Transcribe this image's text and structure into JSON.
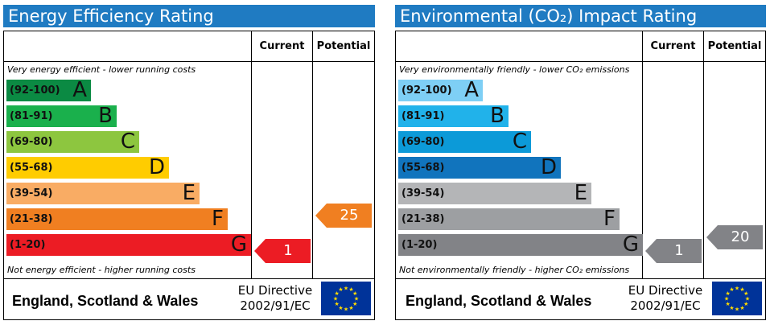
{
  "colors": {
    "title_bar": "#1f7bc2",
    "energy_bands": [
      "#0b8a43",
      "#1ab04c",
      "#8dc63f",
      "#ffcc00",
      "#f9ac64",
      "#f07f21",
      "#ec1c24"
    ],
    "environment_bands": [
      "#7ecff5",
      "#21b2ea",
      "#0c9ad8",
      "#1174bd",
      "#b4b5b7",
      "#9d9fa2",
      "#828387"
    ],
    "eu_flag_blue": "#003399",
    "eu_flag_stars": "#ffdd00"
  },
  "chart_data": [
    {
      "type": "table",
      "title": "Energy Efficiency Rating",
      "columns": [
        "Current",
        "Potential"
      ],
      "top_caption": "Very energy efficient - lower running costs",
      "bottom_caption": "Not energy efficient - higher running costs",
      "bands": [
        {
          "range": "(92-100)",
          "letter": "A"
        },
        {
          "range": "(81-91)",
          "letter": "B"
        },
        {
          "range": "(69-80)",
          "letter": "C"
        },
        {
          "range": "(55-68)",
          "letter": "D"
        },
        {
          "range": "(39-54)",
          "letter": "E"
        },
        {
          "range": "(21-38)",
          "letter": "F"
        },
        {
          "range": "(1-20)",
          "letter": "G"
        }
      ],
      "current": {
        "value": "1",
        "band": "G"
      },
      "potential": {
        "value": "25",
        "band": "F"
      },
      "footer": {
        "region": "England, Scotland & Wales",
        "directive_line1": "EU Directive",
        "directive_line2": "2002/91/EC"
      }
    },
    {
      "type": "table",
      "title": "Environmental (CO₂) Impact Rating",
      "columns": [
        "Current",
        "Potential"
      ],
      "top_caption": "Very environmentally friendly - lower CO₂ emissions",
      "bottom_caption": "Not environmentally friendly - higher CO₂ emissions",
      "bands": [
        {
          "range": "(92-100)",
          "letter": "A"
        },
        {
          "range": "(81-91)",
          "letter": "B"
        },
        {
          "range": "(69-80)",
          "letter": "C"
        },
        {
          "range": "(55-68)",
          "letter": "D"
        },
        {
          "range": "(39-54)",
          "letter": "E"
        },
        {
          "range": "(21-38)",
          "letter": "F"
        },
        {
          "range": "(1-20)",
          "letter": "G"
        }
      ],
      "current": {
        "value": "1",
        "band": "G"
      },
      "potential": {
        "value": "20",
        "band": "G"
      },
      "footer": {
        "region": "England, Scotland & Wales",
        "directive_line1": "EU Directive",
        "directive_line2": "2002/91/EC"
      }
    }
  ]
}
